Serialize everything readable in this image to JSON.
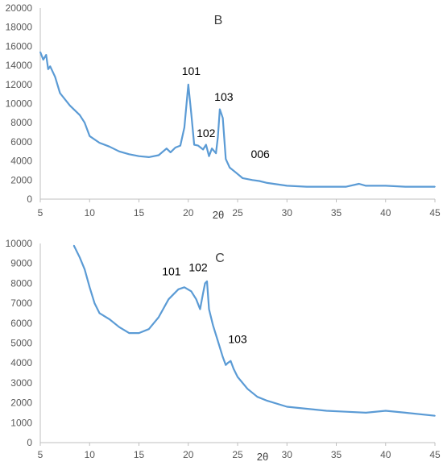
{
  "chart_data": [
    {
      "type": "line",
      "title": "B",
      "xlabel": "2θ",
      "ylabel": "",
      "xlim": [
        5,
        45
      ],
      "ylim": [
        0,
        20000
      ],
      "x_ticks": [
        "5",
        "10",
        "15",
        "20",
        "25",
        "30",
        "35",
        "40",
        "45"
      ],
      "y_ticks": [
        "0",
        "2000",
        "4000",
        "6000",
        "8000",
        "10000",
        "12000",
        "14000",
        "16000",
        "18000",
        "20000"
      ],
      "grid": false,
      "series": [
        {
          "color": "#5b9bd5",
          "x": [
            5,
            5.3,
            5.6,
            5.8,
            6.0,
            6.5,
            7,
            8,
            9,
            9.5,
            10,
            11,
            12,
            13,
            14,
            15,
            16,
            17,
            17.8,
            18.2,
            18.7,
            19.2,
            19.6,
            20.0,
            20.3,
            20.6,
            21.0,
            21.5,
            21.8,
            22.1,
            22.4,
            22.8,
            23.0,
            23.2,
            23.5,
            23.8,
            24.2,
            24.8,
            25.5,
            26.5,
            27.2,
            28,
            30,
            32,
            34,
            36,
            37.3,
            38,
            40,
            42,
            45
          ],
          "y": [
            15400,
            14600,
            15100,
            13600,
            13900,
            12800,
            11100,
            9800,
            8800,
            8000,
            6600,
            5900,
            5500,
            5000,
            4700,
            4500,
            4400,
            4600,
            5300,
            4900,
            5400,
            5600,
            7500,
            12000,
            9000,
            5700,
            5600,
            5200,
            5700,
            4500,
            5300,
            4800,
            6500,
            9400,
            8500,
            4200,
            3300,
            2800,
            2200,
            2000,
            1900,
            1700,
            1400,
            1300,
            1300,
            1300,
            1600,
            1400,
            1400,
            1300,
            1300
          ]
        }
      ],
      "annotations": [
        {
          "text": "101",
          "x": 20.3,
          "y": 13000
        },
        {
          "text": "102",
          "x": 21.8,
          "y": 6500
        },
        {
          "text": "103",
          "x": 23.6,
          "y": 10300
        },
        {
          "text": "006",
          "x": 27.3,
          "y": 4300
        }
      ]
    },
    {
      "type": "line",
      "title": "C",
      "xlabel": "2θ",
      "ylabel": "",
      "xlim": [
        5,
        45
      ],
      "ylim": [
        0,
        10000
      ],
      "x_ticks": [
        "5",
        "10",
        "15",
        "20",
        "25",
        "30",
        "35",
        "40",
        "45"
      ],
      "y_ticks": [
        "0",
        "1000",
        "2000",
        "3000",
        "4000",
        "5000",
        "6000",
        "7000",
        "8000",
        "9000",
        "10000"
      ],
      "grid": false,
      "series": [
        {
          "color": "#5b9bd5",
          "x": [
            8.4,
            9.0,
            9.5,
            10.0,
            10.5,
            11.0,
            12.0,
            13.0,
            14.0,
            15.0,
            16.0,
            17.0,
            18.0,
            19.0,
            19.6,
            20.3,
            20.8,
            21.2,
            21.5,
            21.7,
            21.9,
            22.1,
            22.5,
            23.0,
            23.5,
            23.8,
            24.0,
            24.3,
            24.6,
            25.0,
            26.0,
            27.0,
            28.0,
            30.0,
            32.0,
            34.0,
            36.0,
            38.0,
            40.0,
            42.0,
            45.0
          ],
          "y": [
            9900,
            9300,
            8700,
            7800,
            7000,
            6500,
            6200,
            5800,
            5500,
            5500,
            5700,
            6300,
            7200,
            7700,
            7800,
            7600,
            7200,
            6700,
            7500,
            8000,
            8100,
            6700,
            5900,
            5100,
            4300,
            3900,
            4000,
            4100,
            3700,
            3300,
            2700,
            2300,
            2100,
            1800,
            1700,
            1600,
            1550,
            1500,
            1600,
            1500,
            1350
          ]
        }
      ],
      "annotations": [
        {
          "text": "101",
          "x": 18.3,
          "y": 8400
        },
        {
          "text": "102",
          "x": 21.0,
          "y": 8600
        },
        {
          "text": "103",
          "x": 25.0,
          "y": 5000
        }
      ]
    }
  ]
}
